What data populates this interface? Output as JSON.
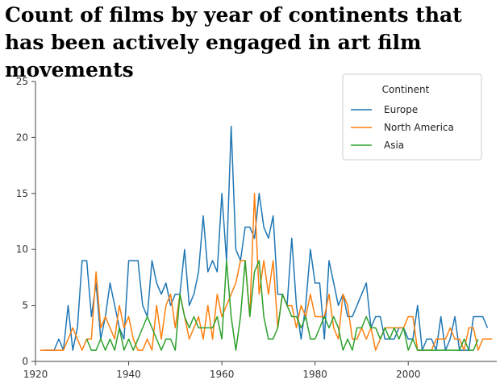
{
  "chart_data": {
    "type": "line",
    "title": "Count of films by year of continents that has been actively engaged in art film movements",
    "xlabel": "",
    "ylabel": "",
    "xlim": [
      1920,
      2019
    ],
    "ylim": [
      0,
      25
    ],
    "xticks": [
      1920,
      1940,
      1960,
      1980,
      2000
    ],
    "yticks": [
      0,
      5,
      10,
      15,
      20,
      25
    ],
    "grid": false,
    "legend": {
      "title": "Continent",
      "position": "top-right"
    },
    "series": [
      {
        "name": "Europe",
        "color": "#1f77b4",
        "x": [
          1922,
          1923,
          1924,
          1925,
          1926,
          1927,
          1928,
          1929,
          1930,
          1931,
          1932,
          1933,
          1934,
          1935,
          1936,
          1937,
          1938,
          1939,
          1940,
          1941,
          1942,
          1943,
          1944,
          1945,
          1946,
          1947,
          1948,
          1949,
          1950,
          1951,
          1952,
          1953,
          1954,
          1955,
          1956,
          1957,
          1958,
          1959,
          1960,
          1961,
          1962,
          1963,
          1964,
          1965,
          1966,
          1967,
          1968,
          1969,
          1970,
          1971,
          1972,
          1973,
          1974,
          1975,
          1976,
          1977,
          1978,
          1979,
          1980,
          1981,
          1982,
          1983,
          1984,
          1985,
          1986,
          1987,
          1988,
          1989,
          1990,
          1991,
          1992,
          1993,
          1994,
          1995,
          1996,
          1997,
          1998,
          1999,
          2000,
          2001,
          2002,
          2003,
          2004,
          2005,
          2006,
          2007,
          2008,
          2009,
          2010,
          2011,
          2012,
          2013,
          2014,
          2015,
          2016,
          2017
        ],
        "y": [
          1,
          1,
          1,
          2,
          1,
          5,
          1,
          3,
          9,
          9,
          4,
          7,
          2,
          4,
          7,
          5,
          3,
          2,
          9,
          9,
          9,
          5,
          4,
          9,
          7,
          6,
          7,
          5,
          6,
          6,
          10,
          5,
          6,
          8,
          13,
          8,
          9,
          8,
          15,
          9,
          21,
          10,
          9,
          12,
          12,
          11,
          15,
          12,
          11,
          13,
          6,
          6,
          5,
          11,
          5,
          2,
          5,
          10,
          7,
          7,
          2,
          9,
          7,
          5,
          6,
          4,
          4,
          5,
          6,
          7,
          3,
          4,
          4,
          2,
          2,
          2,
          3,
          3,
          2,
          2,
          5,
          1,
          2,
          2,
          1,
          4,
          1,
          2,
          4,
          1,
          1,
          1,
          4,
          4,
          4,
          3
        ]
      },
      {
        "name": "North America",
        "color": "#ff7f0e",
        "x": [
          1921,
          1922,
          1923,
          1924,
          1925,
          1926,
          1927,
          1928,
          1929,
          1930,
          1931,
          1932,
          1933,
          1934,
          1935,
          1936,
          1937,
          1938,
          1939,
          1940,
          1941,
          1942,
          1943,
          1944,
          1945,
          1946,
          1947,
          1948,
          1949,
          1950,
          1951,
          1952,
          1953,
          1954,
          1955,
          1956,
          1957,
          1958,
          1959,
          1960,
          1961,
          1962,
          1963,
          1964,
          1965,
          1966,
          1967,
          1968,
          1969,
          1970,
          1971,
          1972,
          1973,
          1974,
          1975,
          1976,
          1977,
          1978,
          1979,
          1980,
          1981,
          1982,
          1983,
          1984,
          1985,
          1986,
          1987,
          1988,
          1989,
          1990,
          1991,
          1992,
          1993,
          1994,
          1995,
          1996,
          1997,
          1998,
          1999,
          2000,
          2001,
          2002,
          2003,
          2004,
          2005,
          2006,
          2007,
          2008,
          2009,
          2010,
          2011,
          2012,
          2013,
          2014,
          2015,
          2016,
          2017,
          2018
        ],
        "y": [
          1,
          1,
          1,
          1,
          1,
          1,
          2,
          3,
          2,
          1,
          2,
          2,
          8,
          3,
          4,
          3,
          2,
          5,
          3,
          4,
          2,
          1,
          1,
          2,
          1,
          5,
          2,
          5,
          6,
          3,
          6,
          4,
          2,
          3,
          4,
          2,
          5,
          2,
          6,
          4,
          5,
          6,
          7,
          9,
          9,
          4,
          15,
          6,
          9,
          6,
          9,
          3,
          6,
          5,
          5,
          3,
          5,
          4,
          6,
          4,
          4,
          4,
          6,
          3,
          2,
          6,
          5,
          2,
          2,
          3,
          2,
          3,
          1,
          2,
          3,
          3,
          3,
          3,
          3,
          4,
          4,
          1,
          1,
          1,
          1,
          2,
          2,
          2,
          3,
          2,
          2,
          1,
          3,
          3,
          1,
          2,
          2,
          2
        ]
      },
      {
        "name": "Asia",
        "color": "#2ca02c",
        "x": [
          1931,
          1932,
          1933,
          1934,
          1935,
          1936,
          1937,
          1938,
          1939,
          1940,
          1941,
          1942,
          1943,
          1944,
          1945,
          1946,
          1947,
          1948,
          1949,
          1950,
          1951,
          1952,
          1953,
          1954,
          1955,
          1956,
          1957,
          1958,
          1959,
          1960,
          1961,
          1962,
          1963,
          1964,
          1965,
          1966,
          1967,
          1968,
          1969,
          1970,
          1971,
          1972,
          1973,
          1974,
          1975,
          1976,
          1977,
          1978,
          1979,
          1980,
          1981,
          1982,
          1983,
          1984,
          1985,
          1986,
          1987,
          1988,
          1989,
          1990,
          1991,
          1992,
          1993,
          1994,
          1995,
          1996,
          1997,
          1998,
          1999,
          2000,
          2001,
          2002,
          2003,
          2004,
          2005,
          2006,
          2007,
          2008,
          2009,
          2010,
          2011,
          2012,
          2013,
          2014,
          2015
        ],
        "y": [
          2,
          1,
          1,
          2,
          1,
          2,
          1,
          3,
          1,
          2,
          1,
          2,
          3,
          4,
          3,
          2,
          1,
          2,
          2,
          1,
          6,
          4,
          3,
          4,
          3,
          3,
          3,
          3,
          4,
          2,
          9,
          4,
          1,
          4,
          9,
          4,
          8,
          9,
          4,
          2,
          2,
          3,
          6,
          5,
          4,
          4,
          3,
          4,
          2,
          2,
          3,
          4,
          3,
          4,
          3,
          1,
          2,
          1,
          3,
          3,
          4,
          3,
          3,
          2,
          3,
          2,
          3,
          2,
          3,
          1,
          2,
          1,
          1,
          1,
          1,
          1,
          1,
          1,
          1,
          1,
          1,
          2,
          1,
          1,
          2
        ]
      }
    ]
  }
}
